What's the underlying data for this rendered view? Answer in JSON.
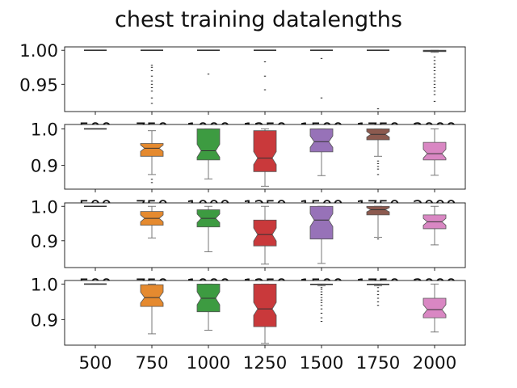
{
  "figure": {
    "title": "chest training datalengths"
  },
  "chart_data": [
    {
      "type": "box",
      "categories": [
        "500",
        "750",
        "1000",
        "1250",
        "1500",
        "1750",
        "2000"
      ],
      "ylim": [
        0.91,
        1.005
      ],
      "yticks": [
        0.95,
        1.0
      ],
      "ytick_labels": [
        "0.95",
        "1.00"
      ],
      "boxes": [
        {
          "min": 1.0,
          "q1": 1.0,
          "median": 1.0,
          "q3": 1.0,
          "max": 1.0,
          "outliers": []
        },
        {
          "min": 1.0,
          "q1": 1.0,
          "median": 1.0,
          "q3": 1.0,
          "max": 1.0,
          "outliers": [
            0.978,
            0.975,
            0.97,
            0.962,
            0.955,
            0.95,
            0.945,
            0.94,
            0.93,
            0.922
          ]
        },
        {
          "min": 1.0,
          "q1": 1.0,
          "median": 1.0,
          "q3": 1.0,
          "max": 1.0,
          "outliers": [
            0.965
          ]
        },
        {
          "min": 1.0,
          "q1": 1.0,
          "median": 1.0,
          "q3": 1.0,
          "max": 1.0,
          "outliers": [
            0.983,
            0.962,
            0.942
          ]
        },
        {
          "min": 1.0,
          "q1": 1.0,
          "median": 1.0,
          "q3": 1.0,
          "max": 1.0,
          "outliers": [
            0.988,
            0.93
          ]
        },
        {
          "min": 1.0,
          "q1": 1.0,
          "median": 1.0,
          "q3": 1.0,
          "max": 1.0,
          "outliers": [
            0.914
          ]
        },
        {
          "min": 0.997,
          "q1": 0.998,
          "median": 0.999,
          "q3": 1.0,
          "max": 1.0,
          "outliers": [
            0.99,
            0.985,
            0.98,
            0.975,
            0.97,
            0.965,
            0.96,
            0.955,
            0.95,
            0.945,
            0.94,
            0.935,
            0.925
          ]
        }
      ]
    },
    {
      "type": "box",
      "categories": [
        "500",
        "750",
        "1000",
        "1250",
        "1500",
        "1750",
        "2000"
      ],
      "ylim": [
        0.835,
        1.012
      ],
      "yticks": [
        0.9,
        1.0
      ],
      "ytick_labels": [
        "0.9",
        "1.0"
      ],
      "boxes": [
        {
          "min": 1.0,
          "q1": 1.0,
          "median": 1.0,
          "q3": 1.0,
          "max": 1.0,
          "outliers": []
        },
        {
          "min": 0.875,
          "q1": 0.925,
          "median": 0.947,
          "q3": 0.96,
          "max": 0.995,
          "outliers": [
            0.862,
            0.853
          ]
        },
        {
          "min": 0.863,
          "q1": 0.915,
          "median": 0.94,
          "q3": 1.0,
          "max": 1.0,
          "outliers": []
        },
        {
          "min": 0.843,
          "q1": 0.883,
          "median": 0.92,
          "q3": 0.995,
          "max": 1.0,
          "outliers": []
        },
        {
          "min": 0.872,
          "q1": 0.937,
          "median": 0.965,
          "q3": 1.0,
          "max": 1.0,
          "outliers": []
        },
        {
          "min": 0.925,
          "q1": 0.97,
          "median": 0.985,
          "q3": 1.0,
          "max": 1.0,
          "outliers": [
            0.912,
            0.905,
            0.897,
            0.89,
            0.875
          ]
        },
        {
          "min": 0.873,
          "q1": 0.915,
          "median": 0.932,
          "q3": 0.963,
          "max": 1.0,
          "outliers": []
        }
      ]
    },
    {
      "type": "box",
      "categories": [
        "500",
        "750",
        "1000",
        "1250",
        "1500",
        "1750",
        "2000"
      ],
      "ylim": [
        0.822,
        1.01
      ],
      "yticks": [
        0.9,
        1.0
      ],
      "ytick_labels": [
        "0.9",
        "1.0"
      ],
      "boxes": [
        {
          "min": 1.0,
          "q1": 1.0,
          "median": 1.0,
          "q3": 1.0,
          "max": 1.0,
          "outliers": []
        },
        {
          "min": 0.908,
          "q1": 0.945,
          "median": 0.965,
          "q3": 0.985,
          "max": 1.0,
          "outliers": []
        },
        {
          "min": 0.868,
          "q1": 0.94,
          "median": 0.965,
          "q3": 0.99,
          "max": 1.0,
          "outliers": []
        },
        {
          "min": 0.832,
          "q1": 0.885,
          "median": 0.918,
          "q3": 0.96,
          "max": 1.0,
          "outliers": []
        },
        {
          "min": 0.834,
          "q1": 0.905,
          "median": 0.96,
          "q3": 1.0,
          "max": 1.0,
          "outliers": []
        },
        {
          "min": 0.91,
          "q1": 0.975,
          "median": 0.99,
          "q3": 1.0,
          "max": 1.0,
          "outliers": [
            0.905
          ]
        },
        {
          "min": 0.888,
          "q1": 0.935,
          "median": 0.955,
          "q3": 0.975,
          "max": 1.0,
          "outliers": []
        }
      ]
    },
    {
      "type": "box",
      "categories": [
        "500",
        "750",
        "1000",
        "1250",
        "1500",
        "1750",
        "2000"
      ],
      "ylim": [
        0.828,
        1.01
      ],
      "yticks": [
        0.9,
        1.0
      ],
      "ytick_labels": [
        "0.9",
        "1.0"
      ],
      "xlabel_visible": true,
      "boxes": [
        {
          "min": 1.0,
          "q1": 1.0,
          "median": 1.0,
          "q3": 1.0,
          "max": 1.0,
          "outliers": []
        },
        {
          "min": 0.86,
          "q1": 0.937,
          "median": 0.962,
          "q3": 0.998,
          "max": 1.0,
          "outliers": []
        },
        {
          "min": 0.87,
          "q1": 0.922,
          "median": 0.96,
          "q3": 1.0,
          "max": 1.0,
          "outliers": []
        },
        {
          "min": 0.833,
          "q1": 0.88,
          "median": 0.93,
          "q3": 1.0,
          "max": 1.0,
          "outliers": []
        },
        {
          "min": 0.995,
          "q1": 0.997,
          "median": 0.999,
          "q3": 1.0,
          "max": 1.0,
          "outliers": [
            0.99,
            0.985,
            0.978,
            0.97,
            0.962,
            0.955,
            0.948,
            0.94,
            0.93,
            0.918,
            0.905,
            0.895
          ]
        },
        {
          "min": 0.995,
          "q1": 0.997,
          "median": 0.999,
          "q3": 1.0,
          "max": 1.0,
          "outliers": [
            0.99,
            0.98,
            0.97,
            0.96,
            0.95,
            0.94
          ]
        },
        {
          "min": 0.865,
          "q1": 0.905,
          "median": 0.928,
          "q3": 0.96,
          "max": 1.0,
          "outliers": []
        }
      ]
    }
  ],
  "colors": {
    "palette": [
      "#4c72b0",
      "#e58a2f",
      "#3d9b41",
      "#c9393b",
      "#9772b8",
      "#8c5a4f",
      "#d987c3"
    ],
    "box_edge": "#555555",
    "whisker": "#777777",
    "outlier": "#222222"
  }
}
